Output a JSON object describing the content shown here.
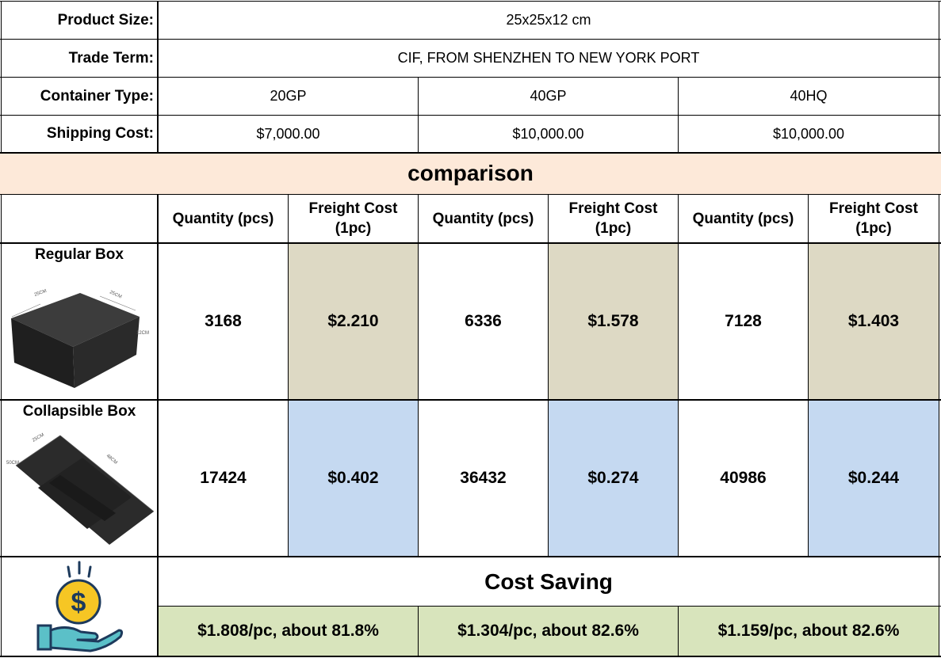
{
  "product_size": {
    "label": "Product Size:",
    "value": "25x25x12 cm"
  },
  "trade_term": {
    "label": "Trade Term:",
    "value": "CIF, FROM SHENZHEN TO NEW YORK PORT"
  },
  "container_type": {
    "label": "Container Type:",
    "values": [
      "20GP",
      "40GP",
      "40HQ"
    ]
  },
  "shipping_cost": {
    "label": "Shipping Cost:",
    "values": [
      "$7,000.00",
      "$10,000.00",
      "$10,000.00"
    ]
  },
  "comparison_title": "comparison",
  "columns": {
    "quantity": "Quantity (pcs)",
    "freight_line1": "Freight Cost",
    "freight_line2": "(1pc)"
  },
  "regular_box": {
    "label": "Regular Box",
    "quantities": [
      "3168",
      "6336",
      "7128"
    ],
    "freight": [
      "$2.210",
      "$1.578",
      "$1.403"
    ],
    "image_labels": [
      "25CM",
      "25CM",
      "12CM"
    ]
  },
  "collapsible_box": {
    "label": "Collapsible Box",
    "quantities": [
      "17424",
      "36432",
      "40986"
    ],
    "freight": [
      "$0.402",
      "$0.274",
      "$0.244"
    ],
    "image_labels": [
      "25CM",
      "48CM",
      "50CM"
    ]
  },
  "cost_saving": {
    "title": "Cost Saving",
    "values": [
      "$1.808/pc, about 81.8%",
      "$1.304/pc, about 82.6%",
      "$1.159/pc, about 82.6%"
    ]
  },
  "colors": {
    "tan": "#ddd9c4",
    "blue": "#c5d9f1",
    "green": "#d8e4bc",
    "peach": "#fde9d9",
    "coin": "#f6c624",
    "hand": "#5bc0c8"
  }
}
